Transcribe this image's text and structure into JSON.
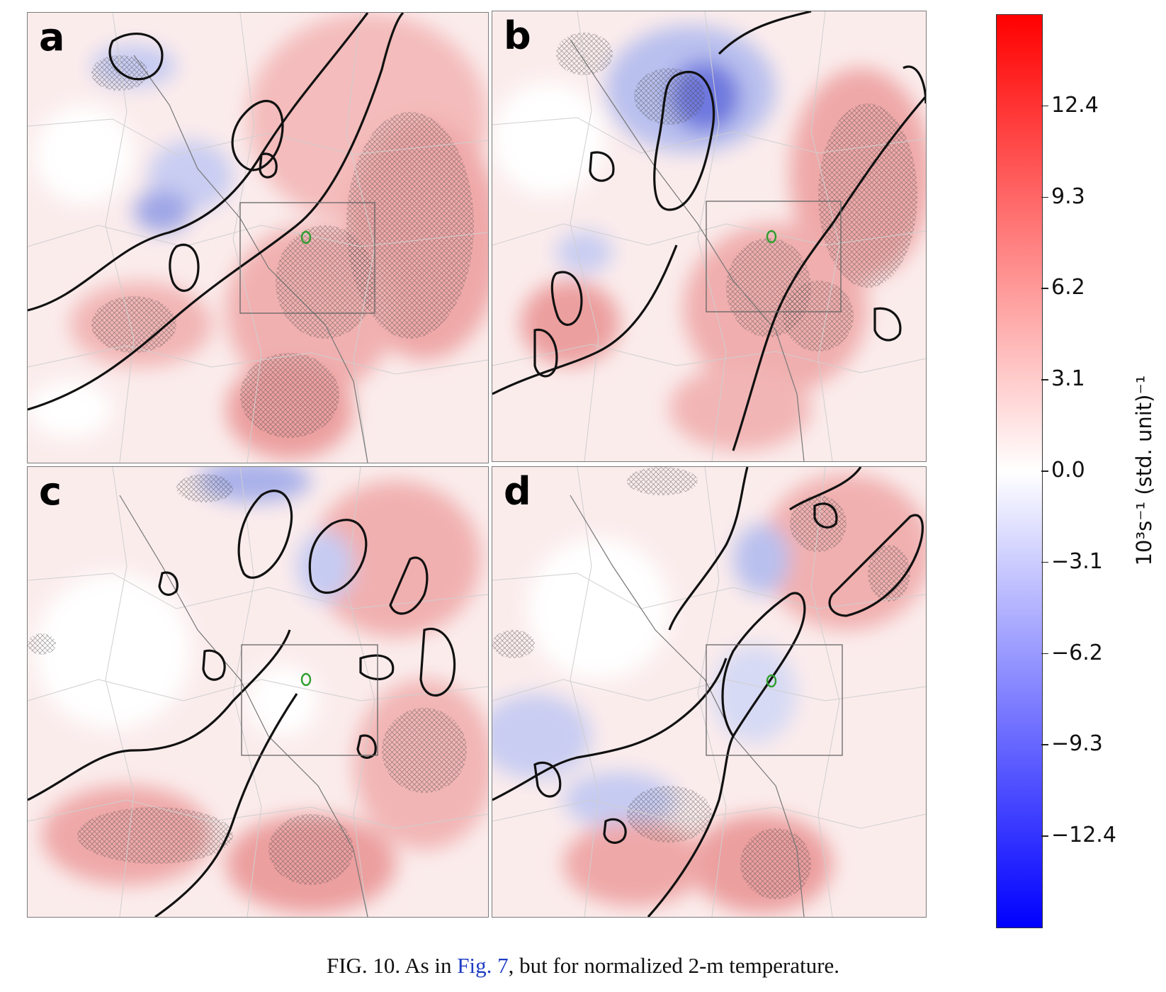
{
  "figure": {
    "panels": [
      {
        "label": "a"
      },
      {
        "label": "b"
      },
      {
        "label": "c"
      },
      {
        "label": "d"
      }
    ],
    "colorbar": {
      "label": "10³s⁻¹ (std. unit)⁻¹",
      "ticks": [
        "12.4",
        "9.3",
        "6.2",
        "3.1",
        "0.0",
        "−3.1",
        "−6.2",
        "−9.3",
        "−12.4"
      ],
      "range": [
        -15.5,
        15.5
      ],
      "colors": {
        "max": "#ff0000",
        "mid": "#ffffff",
        "min": "#0000ff"
      }
    },
    "caption": {
      "prefix": "FIG. 10. As in ",
      "reference": "Fig. 7",
      "suffix": ", but for normalized 2-m temperature."
    }
  }
}
